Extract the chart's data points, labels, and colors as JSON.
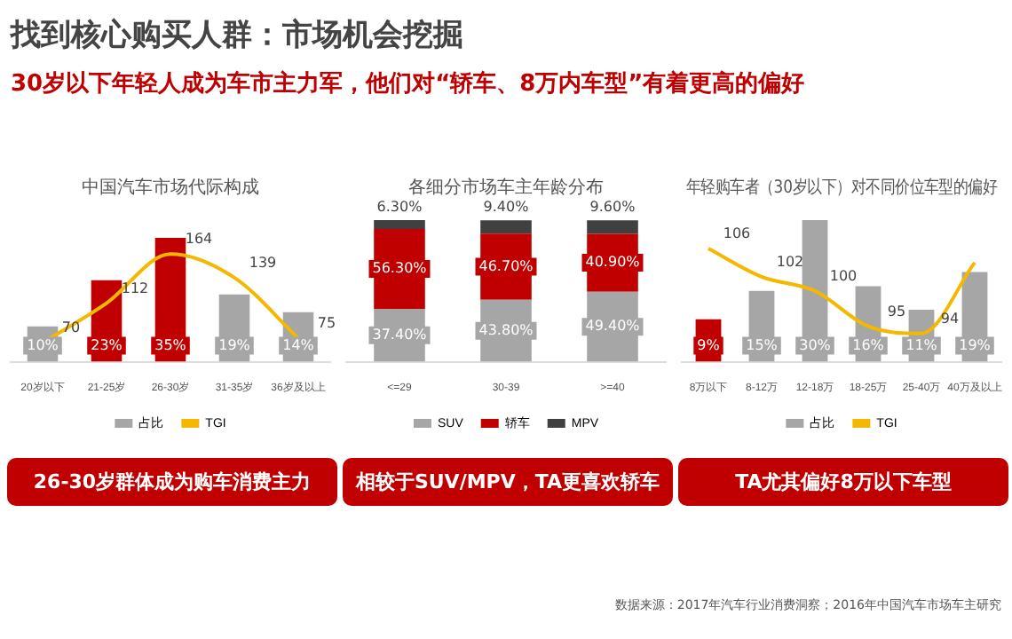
{
  "chart_data": [
    {
      "type": "other",
      "title": "找到核心购买人群：市场机会挖掘",
      "subtitle": "30岁以下年轻人成为车市主力军，他们对“轿车、8万内车型”有着更高的偏好",
      "annotations": [
        "数据来源：2017年汽车行业消费洞察；2016年中国汽车市场车主研究"
      ]
    },
    {
      "type": "bar",
      "title": "中国汽车市场代际构成",
      "categories": [
        "20岁以下",
        "21-25岁",
        "26-30岁",
        "31-35岁",
        "36岁及以上"
      ],
      "series": [
        {
          "name": "占比",
          "color": "#a6a6a6",
          "colors": [
            "#a6a6a6",
            "#c00000",
            "#c00000",
            "#a6a6a6",
            "#a6a6a6"
          ],
          "values": [
            10,
            23,
            35,
            19,
            14
          ],
          "value_labels": [
            "10%",
            "23%",
            "35%",
            "19%",
            "14%"
          ]
        },
        {
          "name": "TGI",
          "type": "line",
          "axis": "y2",
          "color": "#f5b800",
          "values": [
            70,
            112,
            164,
            139,
            75
          ],
          "value_labels": [
            "70",
            "112",
            "164",
            "139",
            "75"
          ]
        }
      ],
      "legend": "bottom",
      "tick_labels": "x",
      "annotations": [
        "26-30岁群体成为购车消费主力"
      ]
    },
    {
      "type": "bar",
      "title": "各细分市场车主年龄分布",
      "categories": [
        "<=29",
        "30-39",
        ">=40"
      ],
      "stacked": true,
      "series": [
        {
          "name": "SUV",
          "color": "#a6a6a6",
          "values": [
            37.4,
            43.8,
            49.4
          ],
          "value_labels": [
            "37.40%",
            "43.80%",
            "49.40%"
          ]
        },
        {
          "name": "轿车",
          "color": "#c00000",
          "values": [
            56.3,
            46.7,
            40.9
          ],
          "value_labels": [
            "56.30%",
            "46.70%",
            "40.90%"
          ]
        },
        {
          "name": "MPV",
          "color": "#404040",
          "values": [
            6.3,
            9.4,
            9.6
          ],
          "value_labels": [
            "6.30%",
            "9.40%",
            "9.60%"
          ]
        }
      ],
      "legend": "bottom",
      "tick_labels": "x",
      "annotations": [
        "相较于SUV/MPV，TA更喜欢轿车"
      ]
    },
    {
      "type": "bar",
      "title": "年轻购车者（30岁以下）对不同价位车型的偏好",
      "categories": [
        "8万以下",
        "8-12万",
        "12-18万",
        "18-25万",
        "25-40万",
        "40万及以上"
      ],
      "series": [
        {
          "name": "占比",
          "color": "#a6a6a6",
          "colors": [
            "#c00000",
            "#a6a6a6",
            "#a6a6a6",
            "#a6a6a6",
            "#a6a6a6",
            "#a6a6a6"
          ],
          "values": [
            9,
            15,
            30,
            16,
            11,
            19
          ],
          "value_labels": [
            "9%",
            "15%",
            "30%",
            "16%",
            "11%",
            "19%"
          ]
        },
        {
          "name": "TGI",
          "type": "line",
          "axis": "y2",
          "color": "#f5b800",
          "values": [
            106,
            102,
            100,
            95,
            94,
            104
          ],
          "value_labels": [
            "106",
            "102",
            "100",
            "95",
            "94",
            null
          ]
        }
      ],
      "legend": "bottom",
      "tick_labels": "x",
      "annotations": [
        "TA尤其偏好8万以下车型"
      ]
    }
  ]
}
